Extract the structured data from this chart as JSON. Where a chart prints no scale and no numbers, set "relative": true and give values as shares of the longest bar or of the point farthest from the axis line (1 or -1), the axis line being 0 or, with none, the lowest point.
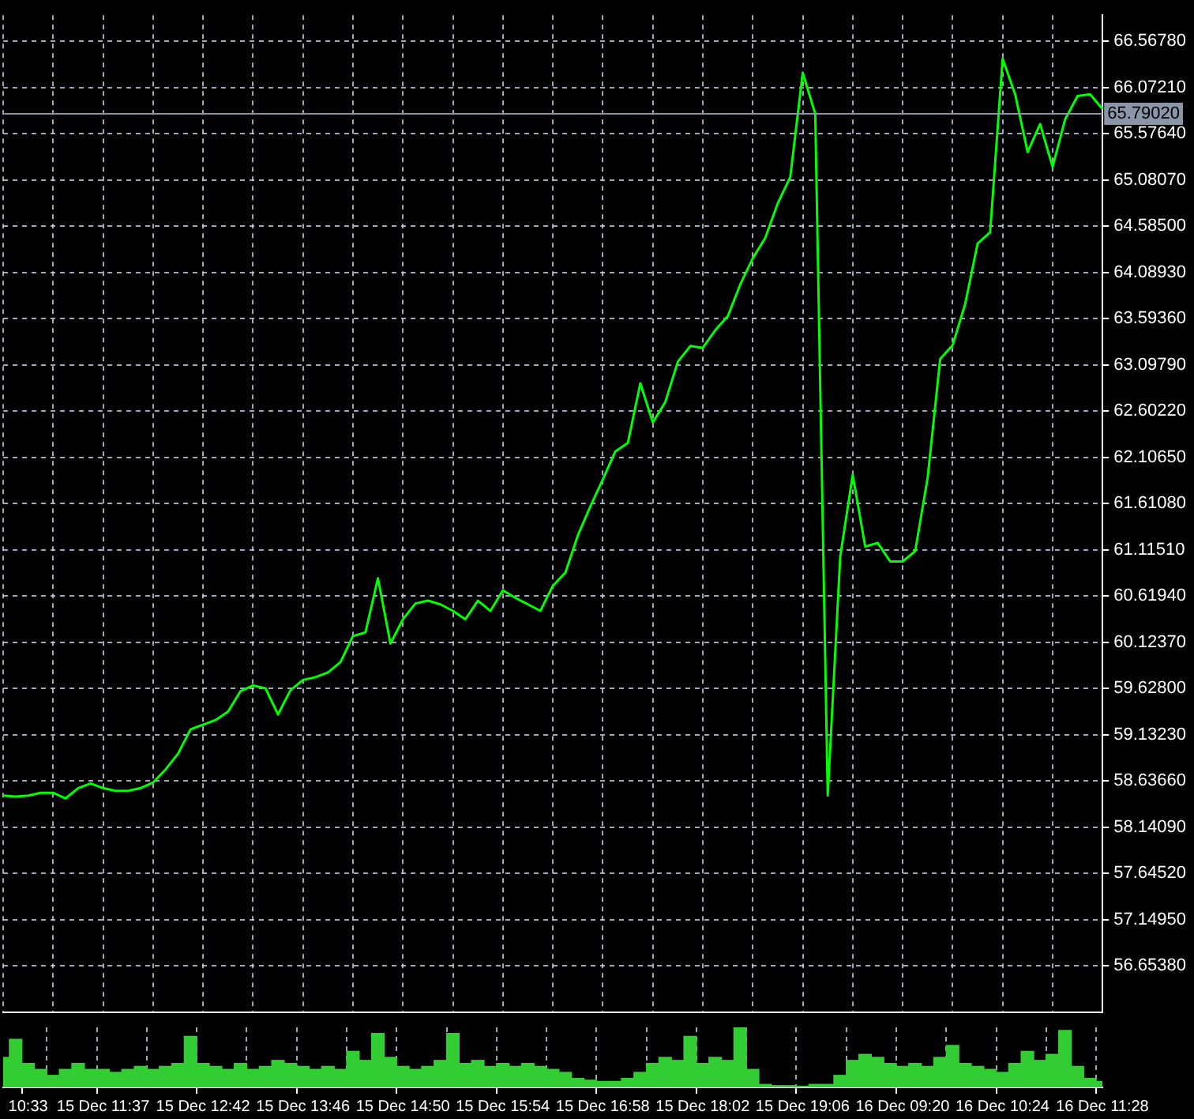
{
  "chart_data": [
    {
      "type": "line",
      "tick_labels": "y",
      "categories": [
        null,
        null,
        null,
        null,
        null,
        null,
        null,
        null,
        null,
        null,
        null,
        null,
        null,
        null,
        null,
        null,
        null,
        null,
        null,
        null,
        null,
        null,
        null,
        null,
        null,
        null,
        null,
        null,
        null,
        null,
        null,
        null,
        null,
        null,
        null,
        null,
        null,
        null,
        null,
        null,
        null,
        null,
        null,
        null,
        null,
        null,
        null,
        null,
        null,
        null,
        null,
        null,
        null,
        null,
        null,
        null,
        null,
        null,
        null,
        null,
        null,
        null,
        null,
        null,
        null,
        null,
        null,
        null,
        null,
        null,
        null,
        null,
        null,
        null,
        null,
        null,
        null,
        null,
        null,
        null,
        null,
        null,
        null,
        null,
        null,
        null,
        null,
        null,
        null
      ],
      "series": [
        {
          "color": "#00ff00",
          "values": [
            58.48,
            58.47,
            58.48,
            58.51,
            58.51,
            58.45,
            58.56,
            58.61,
            58.56,
            58.53,
            58.53,
            58.56,
            58.62,
            58.76,
            58.93,
            59.19,
            59.24,
            59.29,
            59.38,
            59.6,
            59.66,
            59.63,
            59.35,
            59.61,
            59.72,
            59.75,
            59.8,
            59.91,
            60.19,
            60.23,
            60.81,
            60.11,
            60.37,
            60.54,
            60.57,
            60.53,
            60.46,
            60.37,
            60.57,
            60.46,
            60.68,
            60.6,
            60.53,
            60.46,
            60.73,
            60.87,
            61.27,
            61.58,
            61.87,
            62.17,
            62.26,
            62.9,
            62.48,
            62.7,
            63.13,
            63.3,
            63.28,
            63.47,
            63.62,
            63.96,
            64.24,
            64.46,
            64.83,
            65.11,
            66.23,
            65.79,
            58.48,
            61.04,
            61.92,
            61.15,
            61.19,
            60.99,
            60.99,
            61.1,
            61.89,
            63.16,
            63.31,
            63.75,
            64.4,
            64.52,
            66.38,
            66.0,
            65.38,
            65.68,
            65.22,
            65.73,
            65.98,
            66.0,
            65.84
          ]
        }
      ],
      "ylim": [
        56.158,
        66.847
      ],
      "yticks": [
        {
          "value": 56.6538,
          "label": "56.65380"
        },
        {
          "value": 57.1495,
          "label": "57.14950"
        },
        {
          "value": 57.6452,
          "label": "57.64520"
        },
        {
          "value": 58.1409,
          "label": "58.14090"
        },
        {
          "value": 58.6366,
          "label": "58.63660"
        },
        {
          "value": 59.1323,
          "label": "59.13230"
        },
        {
          "value": 59.628,
          "label": "59.62800"
        },
        {
          "value": 60.1237,
          "label": "60.12370"
        },
        {
          "value": 60.6194,
          "label": "60.61940"
        },
        {
          "value": 61.1151,
          "label": "61.11510"
        },
        {
          "value": 61.6108,
          "label": "61.61080"
        },
        {
          "value": 62.1065,
          "label": "62.10650"
        },
        {
          "value": 62.6022,
          "label": "62.60220"
        },
        {
          "value": 63.0979,
          "label": "63.09790"
        },
        {
          "value": 63.5936,
          "label": "63.59360"
        },
        {
          "value": 64.0893,
          "label": "64.08930"
        },
        {
          "value": 64.585,
          "label": "64.58500"
        },
        {
          "value": 65.0807,
          "label": "65.08070"
        },
        {
          "value": 65.5764,
          "label": "65.57640"
        },
        {
          "value": 66.0721,
          "label": "66.07210"
        },
        {
          "value": 66.5678,
          "label": "66.56780"
        }
      ],
      "ref_lines": [
        {
          "axis": "y",
          "value": 65.7902,
          "label": "65.79020",
          "color": "#8a96a8"
        }
      ],
      "grid": true,
      "legend": false
    },
    {
      "type": "bar",
      "relative": true,
      "tick_labels": "x",
      "grid": "x",
      "categories": [
        null,
        null,
        "10:33",
        null,
        null,
        null,
        null,
        null,
        "15 Dec 11:37",
        null,
        null,
        null,
        null,
        null,
        null,
        null,
        "15 Dec 12:42",
        null,
        null,
        null,
        null,
        null,
        null,
        null,
        "15 Dec 13:46",
        null,
        null,
        null,
        null,
        null,
        null,
        null,
        "15 Dec 14:50",
        null,
        null,
        null,
        null,
        null,
        null,
        null,
        "15 Dec 15:54",
        null,
        null,
        null,
        null,
        null,
        null,
        null,
        "15 Dec 16:58",
        null,
        null,
        null,
        null,
        null,
        null,
        null,
        "15 Dec 18:02",
        null,
        null,
        null,
        null,
        null,
        null,
        null,
        "15 Dec 19:06",
        null,
        null,
        null,
        null,
        null,
        null,
        null,
        "16 Dec 09:20",
        null,
        null,
        null,
        null,
        null,
        null,
        null,
        "16 Dec 10:24",
        null,
        null,
        null,
        null,
        null,
        null,
        null,
        "16 Dec 11:28"
      ],
      "series": [
        {
          "color": "#32cd32",
          "values": [
            0.5,
            0.8,
            0.4,
            0.3,
            0.2,
            0.3,
            0.4,
            0.3,
            0.3,
            0.25,
            0.3,
            0.35,
            0.3,
            0.35,
            0.4,
            0.85,
            0.4,
            0.35,
            0.3,
            0.4,
            0.3,
            0.35,
            0.45,
            0.4,
            0.35,
            0.3,
            0.35,
            0.3,
            0.6,
            0.45,
            0.9,
            0.5,
            0.35,
            0.3,
            0.35,
            0.45,
            0.9,
            0.4,
            0.45,
            0.35,
            0.4,
            0.35,
            0.4,
            0.35,
            0.3,
            0.25,
            0.15,
            0.12,
            0.1,
            0.1,
            0.15,
            0.25,
            0.4,
            0.5,
            0.45,
            0.85,
            0.4,
            0.5,
            0.45,
            1.0,
            0.3,
            0.05,
            0.03,
            0.03,
            0.02,
            0.05,
            0.05,
            0.2,
            0.45,
            0.55,
            0.5,
            0.4,
            0.35,
            0.4,
            0.35,
            0.5,
            0.7,
            0.4,
            0.35,
            0.3,
            0.25,
            0.4,
            0.6,
            0.45,
            0.55,
            0.95,
            0.35,
            0.15,
            0.1
          ]
        }
      ],
      "legend": false
    }
  ]
}
